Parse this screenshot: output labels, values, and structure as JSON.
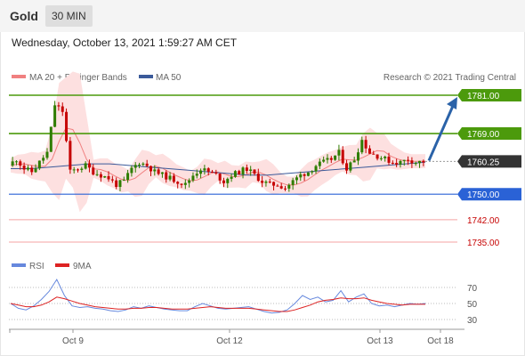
{
  "header": {
    "asset": "Gold",
    "timeframe": "30 MIN"
  },
  "datetime": "Wednesday, October 13, 2021 1:59:27 AM CET",
  "legend": {
    "ma_bb": "MA 20 + Bollinger Bands",
    "ma50": "MA 50",
    "rsi": "RSI",
    "ma9": "9MA"
  },
  "credit": "Research © 2021 Trading Central",
  "colors": {
    "up": "#2e7d00",
    "down": "#c60000",
    "bb_fill": "#fde0e0",
    "ma20": "#f08080",
    "ma50": "#3b5a9a",
    "resistance": "#4c9a0c",
    "support": "#2a62d6",
    "support2": "#f4a3a3",
    "last": "#333333",
    "arrow": "#2a62a8",
    "rsi": "#6688dd",
    "rsi_ma": "#dd2222"
  },
  "chart_data": {
    "type": "line",
    "instrument": "Gold",
    "timeframe": "30 MIN",
    "x": [
      "Oct 9",
      "Oct 12",
      "Oct 13",
      "Oct 18"
    ],
    "levels": {
      "resistance": [
        1781.0,
        1769.0
      ],
      "last": 1760.25,
      "support": [
        1750.0,
        1742.0,
        1735.0
      ],
      "labels": [
        "1781.00",
        "1769.00",
        "1760.25",
        "1750.00",
        "1742.00",
        "1735.00"
      ]
    },
    "ylim": [
      1735,
      1783
    ],
    "price_path": [
      1759,
      1761,
      1758,
      1757,
      1760,
      1763,
      1778,
      1776,
      1757,
      1758,
      1759,
      1757,
      1756,
      1755,
      1753,
      1754,
      1758,
      1760,
      1759,
      1757,
      1756,
      1755,
      1754,
      1753,
      1756,
      1758,
      1757,
      1756,
      1754,
      1756,
      1757,
      1758,
      1756,
      1754,
      1753,
      1753,
      1752,
      1754,
      1756,
      1757,
      1759,
      1760,
      1761,
      1763,
      1758,
      1761,
      1767,
      1763,
      1762,
      1761,
      1760,
      1760,
      1761,
      1760,
      1760.25
    ],
    "ma50_path": [
      1758,
      1758,
      1758.5,
      1759,
      1759.5,
      1759.5,
      1759,
      1758.5,
      1758,
      1757.5,
      1757,
      1756.5,
      1756,
      1756,
      1756.5,
      1757,
      1757.5,
      1758,
      1758.5,
      1759,
      1759.5,
      1760
    ],
    "rsi": {
      "ticks": [
        70,
        50,
        30
      ],
      "values": [
        50,
        44,
        42,
        47,
        55,
        65,
        80,
        60,
        47,
        45,
        46,
        44,
        43,
        41,
        40,
        42,
        46,
        44,
        47,
        45,
        43,
        42,
        41,
        41,
        46,
        50,
        47,
        44,
        43,
        44,
        45,
        46,
        43,
        40,
        38,
        39,
        42,
        50,
        60,
        55,
        58,
        52,
        54,
        66,
        52,
        58,
        62,
        50,
        47,
        48,
        46,
        48,
        50,
        49,
        50
      ],
      "ma9": [
        50,
        48,
        46,
        46,
        48,
        52,
        58,
        56,
        53,
        50,
        48,
        46,
        45,
        44,
        43,
        43,
        44,
        44,
        45,
        45,
        44,
        43,
        43,
        43,
        44,
        45,
        46,
        45,
        44,
        44,
        44,
        44,
        43,
        42,
        41,
        40,
        40,
        42,
        45,
        48,
        52,
        54,
        55,
        57,
        56,
        56,
        57,
        54,
        52,
        50,
        49,
        48,
        49,
        49,
        49
      ]
    }
  }
}
